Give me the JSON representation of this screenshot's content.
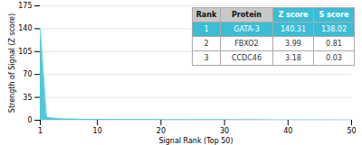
{
  "chart_data": {
    "type": "area",
    "xlabel": "Signal Rank (Top 50)",
    "ylabel": "Strength of Signal (Z score)",
    "x": [
      1,
      2,
      3,
      4,
      5,
      6,
      7,
      8,
      9,
      10,
      11,
      12,
      13,
      14,
      15,
      16,
      17,
      18,
      19,
      20,
      21,
      22,
      23,
      24,
      25,
      26,
      27,
      28,
      29,
      30,
      31,
      32,
      33,
      34,
      35,
      36,
      37,
      38,
      39,
      40,
      41,
      42,
      43,
      44,
      45,
      46,
      47,
      48,
      49,
      50
    ],
    "values": [
      140.31,
      3.99,
      3.18,
      2.1,
      1.8,
      1.6,
      1.5,
      1.4,
      1.3,
      1.2,
      1.15,
      1.1,
      1.05,
      1.0,
      0.98,
      0.95,
      0.92,
      0.9,
      0.88,
      0.85,
      0.83,
      0.81,
      0.79,
      0.77,
      0.75,
      0.73,
      0.71,
      0.69,
      0.67,
      0.65,
      0.63,
      0.61,
      0.59,
      0.57,
      0.55,
      0.53,
      0.51,
      0.49,
      0.47,
      0.45,
      0.43,
      0.41,
      0.39,
      0.37,
      0.35,
      0.33,
      0.31,
      0.29,
      0.27,
      0.25
    ],
    "color": "#4dc8d8",
    "xlim": [
      1,
      50
    ],
    "ylim": [
      0,
      175
    ],
    "xticks": [
      1,
      10,
      20,
      30,
      40,
      50
    ],
    "yticks": [
      0,
      35,
      70,
      105,
      140,
      175
    ],
    "grid": true,
    "table": {
      "columns": [
        "Rank",
        "Protein",
        "Z score",
        "S score"
      ],
      "rows": [
        [
          "1",
          "GATA-3",
          "140.31",
          "138.02"
        ],
        [
          "2",
          "FBXO2",
          "3.99",
          "0.81"
        ],
        [
          "3",
          "CCDC46",
          "3.18",
          "0.03"
        ]
      ],
      "color": "#3bbdd4"
    }
  }
}
